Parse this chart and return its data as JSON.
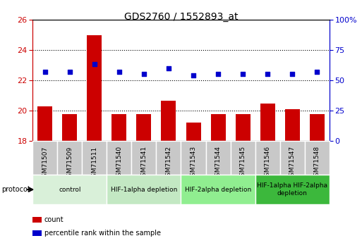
{
  "title": "GDS2760 / 1552893_at",
  "samples": [
    "GSM71507",
    "GSM71509",
    "GSM71511",
    "GSM71540",
    "GSM71541",
    "GSM71542",
    "GSM71543",
    "GSM71544",
    "GSM71545",
    "GSM71546",
    "GSM71547",
    "GSM71548"
  ],
  "counts": [
    20.3,
    19.75,
    24.95,
    19.75,
    19.75,
    20.65,
    19.2,
    19.75,
    19.75,
    20.45,
    20.1,
    19.75
  ],
  "percentile_ranks": [
    57,
    57,
    63,
    57,
    55,
    60,
    54,
    55,
    55,
    55,
    55,
    57
  ],
  "ylim_left": [
    18,
    26
  ],
  "ylim_right": [
    0,
    100
  ],
  "yticks_left": [
    18,
    20,
    22,
    24,
    26
  ],
  "yticks_right": [
    0,
    25,
    50,
    75,
    100
  ],
  "ytick_labels_right": [
    "0",
    "25",
    "50",
    "75",
    "100%"
  ],
  "bar_color": "#cc0000",
  "scatter_color": "#0000cc",
  "bar_bottom": 18,
  "groups": [
    {
      "label": "control",
      "start": 0,
      "end": 3,
      "color": "#d9f0d9"
    },
    {
      "label": "HIF-1alpha depletion",
      "start": 3,
      "end": 6,
      "color": "#c3e8c3"
    },
    {
      "label": "HIF-2alpha depletion",
      "start": 6,
      "end": 9,
      "color": "#90ee90"
    },
    {
      "label": "HIF-1alpha HIF-2alpha\ndepletion",
      "start": 9,
      "end": 12,
      "color": "#3cb83c"
    }
  ],
  "protocol_label": "protocol",
  "legend_items": [
    {
      "color": "#cc0000",
      "label": "count"
    },
    {
      "color": "#0000cc",
      "label": "percentile rank within the sample"
    }
  ],
  "grid_yticks": [
    20,
    22,
    24
  ],
  "background_color": "#ffffff",
  "tick_bg_color": "#c8c8c8"
}
